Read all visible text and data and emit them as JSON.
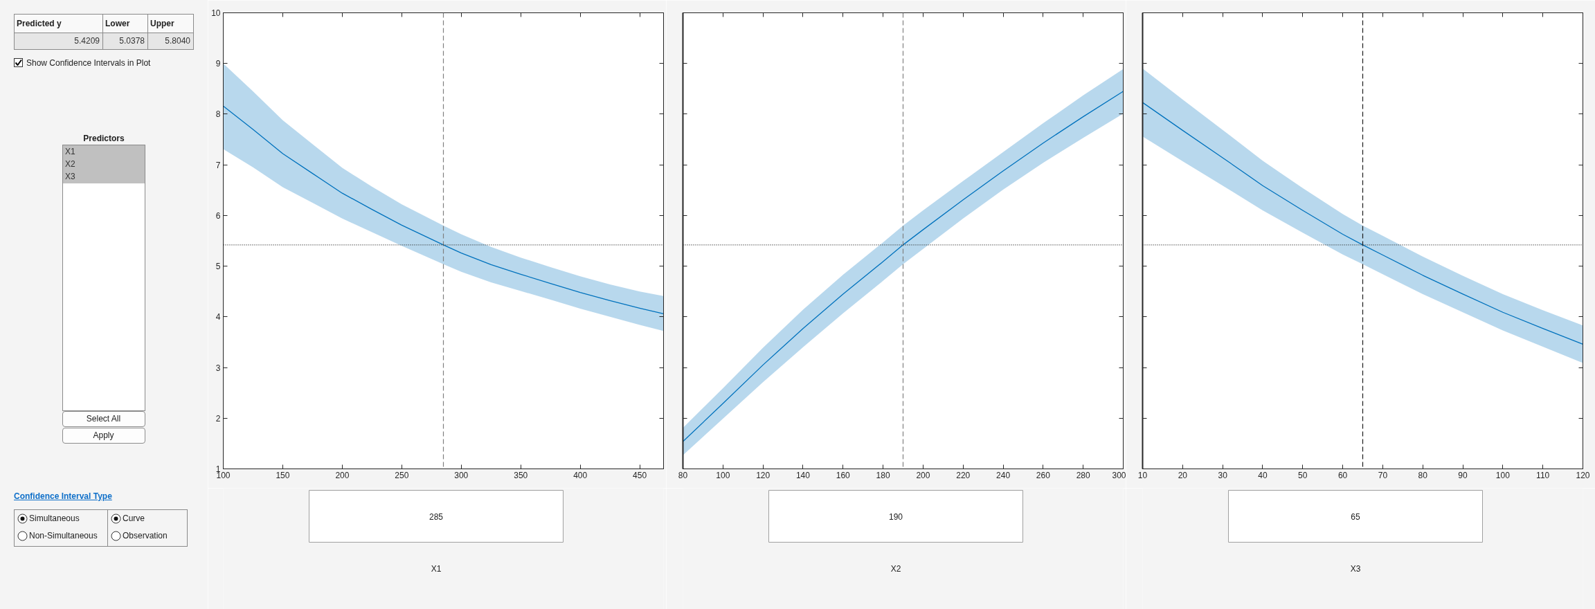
{
  "chart_data": [
    {
      "type": "other",
      "annotations": [
        "Predicted y",
        "Lower",
        "Upper",
        "5.4209",
        "5.0378",
        "5.8040",
        "Show Confidence Intervals in Plot",
        "Predictors",
        "X1",
        "X2",
        "X3",
        "Select All",
        "Apply",
        "Confidence Interval Type",
        "Simultaneous",
        "Non-Simultaneous",
        "Curve",
        "Observation"
      ]
    },
    {
      "type": "line",
      "xlabel": "X1",
      "annotations": [
        "285"
      ],
      "xlim": [
        100,
        470
      ],
      "xticks": [
        100,
        150,
        200,
        250,
        300,
        350,
        400,
        450
      ],
      "ylim": [
        1,
        10
      ],
      "yticks": [
        1,
        2,
        3,
        4,
        5,
        6,
        7,
        8,
        9,
        10
      ],
      "x": [
        100,
        125,
        150,
        175,
        200,
        225,
        250,
        285,
        300,
        325,
        350,
        375,
        400,
        425,
        450,
        470
      ],
      "series": [
        {
          "color": "#0072bd",
          "values": [
            8.16,
            7.7,
            7.22,
            6.83,
            6.44,
            6.12,
            5.81,
            5.42,
            5.26,
            5.03,
            4.84,
            4.66,
            4.48,
            4.32,
            4.17,
            4.06
          ],
          "upper": [
            9.0,
            8.45,
            7.88,
            7.41,
            6.94,
            6.57,
            6.22,
            5.8,
            5.63,
            5.38,
            5.17,
            4.98,
            4.8,
            4.64,
            4.5,
            4.41
          ],
          "lower": [
            7.31,
            6.95,
            6.56,
            6.25,
            5.94,
            5.67,
            5.4,
            5.04,
            4.89,
            4.68,
            4.51,
            4.34,
            4.16,
            4.0,
            3.84,
            3.72
          ]
        }
      ],
      "ref_lines": [
        {
          "axis": "x",
          "value": 285,
          "line_style": "dashed",
          "color": "#7f7f7f"
        },
        {
          "axis": "y",
          "value": 5.42,
          "line_style": "dotted",
          "color": "#262626"
        }
      ]
    },
    {
      "type": "line",
      "xlabel": "X2",
      "tick_labels": "x",
      "annotations": [
        "190"
      ],
      "xlim": [
        80,
        300
      ],
      "xticks": [
        80,
        100,
        120,
        140,
        160,
        180,
        200,
        220,
        240,
        260,
        280,
        300
      ],
      "ylim": [
        1,
        10
      ],
      "yticks": [
        1,
        2,
        3,
        4,
        5,
        6,
        7,
        8,
        9,
        10
      ],
      "x": [
        80,
        100,
        120,
        140,
        160,
        180,
        190,
        200,
        220,
        240,
        260,
        280,
        300
      ],
      "series": [
        {
          "color": "#0072bd",
          "values": [
            1.54,
            2.29,
            3.05,
            3.77,
            4.45,
            5.09,
            5.42,
            5.72,
            6.31,
            6.88,
            7.43,
            7.95,
            8.45
          ],
          "upper": [
            1.81,
            2.59,
            3.39,
            4.14,
            4.83,
            5.47,
            5.8,
            6.1,
            6.68,
            7.25,
            7.82,
            8.37,
            8.89
          ],
          "lower": [
            1.27,
            1.99,
            2.71,
            3.4,
            4.07,
            4.71,
            5.04,
            5.34,
            5.94,
            6.51,
            7.04,
            7.53,
            8.01
          ]
        }
      ],
      "ref_lines": [
        {
          "axis": "x",
          "value": 190,
          "line_style": "dashed",
          "color": "#7f7f7f"
        },
        {
          "axis": "y",
          "value": 5.42,
          "line_style": "dotted",
          "color": "#262626"
        }
      ]
    },
    {
      "type": "line",
      "xlabel": "X3",
      "tick_labels": "x",
      "annotations": [
        "65"
      ],
      "xlim": [
        10,
        120
      ],
      "xticks": [
        10,
        20,
        30,
        40,
        50,
        60,
        70,
        80,
        90,
        100,
        110,
        120
      ],
      "ylim": [
        1,
        10
      ],
      "yticks": [
        1,
        2,
        3,
        4,
        5,
        6,
        7,
        8,
        9,
        10
      ],
      "x": [
        10,
        20,
        30,
        40,
        50,
        60,
        65,
        70,
        80,
        90,
        100,
        110,
        120
      ],
      "series": [
        {
          "color": "#0072bd",
          "values": [
            8.23,
            7.68,
            7.14,
            6.59,
            6.1,
            5.63,
            5.42,
            5.22,
            4.82,
            4.45,
            4.09,
            3.77,
            3.46
          ],
          "upper": [
            8.9,
            8.29,
            7.69,
            7.08,
            6.54,
            6.03,
            5.8,
            5.6,
            5.19,
            4.81,
            4.45,
            4.13,
            3.83
          ],
          "lower": [
            7.56,
            7.07,
            6.59,
            6.1,
            5.66,
            5.23,
            5.04,
            4.84,
            4.45,
            4.09,
            3.73,
            3.41,
            3.09
          ]
        }
      ],
      "ref_lines": [
        {
          "axis": "x",
          "value": 65,
          "line_style": "dashed",
          "color": "#1a1a1a"
        },
        {
          "axis": "y",
          "value": 5.42,
          "line_style": "dotted",
          "color": "#262626"
        }
      ]
    }
  ]
}
